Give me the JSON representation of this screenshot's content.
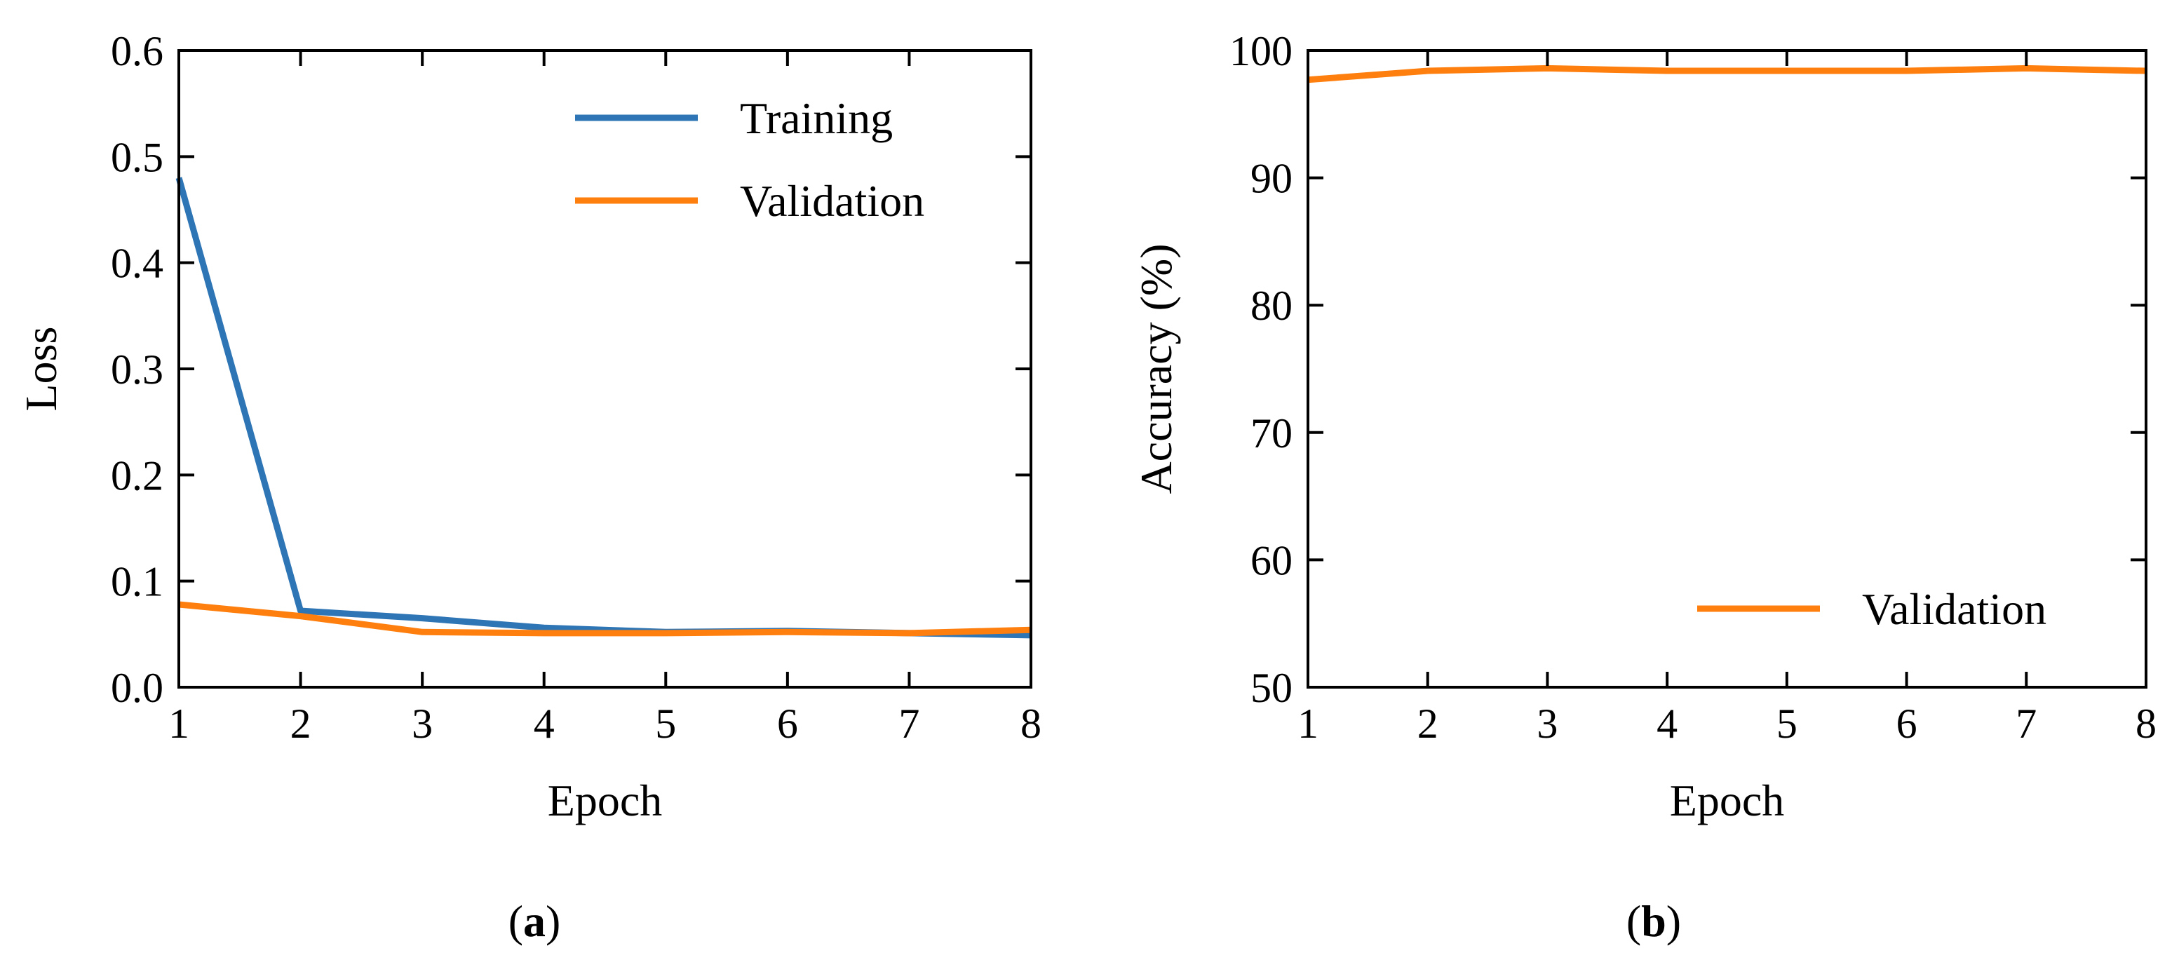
{
  "colors": {
    "training": "#2E75B6",
    "validation": "#FF7F0E",
    "axis": "#000000"
  },
  "panels": {
    "a_label": "a",
    "b_label": "b"
  },
  "chart_data": [
    {
      "type": "line",
      "panel": "a",
      "title": "",
      "xlabel": "Epoch",
      "ylabel": "Loss",
      "x": [
        1,
        2,
        3,
        4,
        5,
        6,
        7,
        8
      ],
      "xlim": [
        1,
        8
      ],
      "ylim": [
        0.0,
        0.6
      ],
      "xticks": [
        1,
        2,
        3,
        4,
        5,
        6,
        7,
        8
      ],
      "yticks": [
        0.0,
        0.1,
        0.2,
        0.3,
        0.4,
        0.5,
        0.6
      ],
      "ytick_labels": [
        "0.0",
        "0.1",
        "0.2",
        "0.3",
        "0.4",
        "0.5",
        "0.6"
      ],
      "grid": false,
      "legend_position": "top-right",
      "series": [
        {
          "name": "Training",
          "color_key": "training",
          "values": [
            0.48,
            0.072,
            0.065,
            0.056,
            0.052,
            0.053,
            0.051,
            0.049
          ]
        },
        {
          "name": "Validation",
          "color_key": "validation",
          "values": [
            0.078,
            0.067,
            0.052,
            0.051,
            0.051,
            0.052,
            0.051,
            0.054
          ]
        }
      ]
    },
    {
      "type": "line",
      "panel": "b",
      "title": "",
      "xlabel": "Epoch",
      "ylabel": "Accuracy (%)",
      "x": [
        1,
        2,
        3,
        4,
        5,
        6,
        7,
        8
      ],
      "xlim": [
        1,
        8
      ],
      "ylim": [
        50,
        100
      ],
      "xticks": [
        1,
        2,
        3,
        4,
        5,
        6,
        7,
        8
      ],
      "yticks": [
        50,
        60,
        70,
        80,
        90,
        100
      ],
      "ytick_labels": [
        "50",
        "60",
        "70",
        "80",
        "90",
        "100"
      ],
      "grid": false,
      "legend_position": "bottom-right",
      "series": [
        {
          "name": "Validation",
          "color_key": "validation",
          "values": [
            97.7,
            98.4,
            98.6,
            98.4,
            98.4,
            98.4,
            98.6,
            98.4
          ]
        }
      ]
    }
  ]
}
